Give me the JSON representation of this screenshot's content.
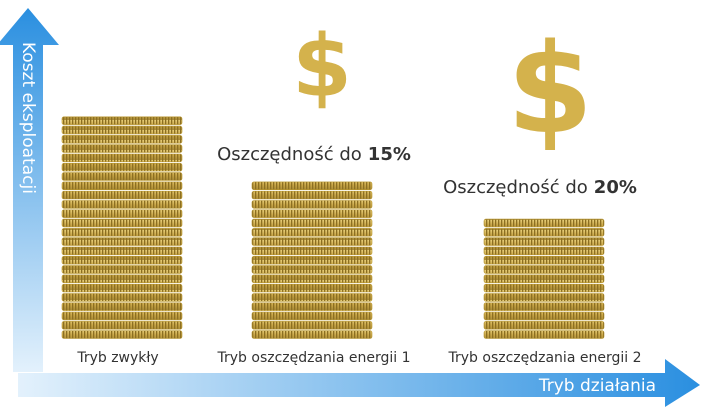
{
  "y_axis": {
    "label": "Koszt eksploatacji"
  },
  "x_axis": {
    "label": "Tryb działania"
  },
  "columns": [
    {
      "label": "Tryb zwykły"
    },
    {
      "label": "Tryb oszczędzania energii 1",
      "symbol": "$",
      "savings_text": "Oszczędność do",
      "savings_value": "15%"
    },
    {
      "label": "Tryb oszczędzania energii 2",
      "symbol": "$",
      "savings_text": "Oszczędność do",
      "savings_value": "20%"
    }
  ]
}
